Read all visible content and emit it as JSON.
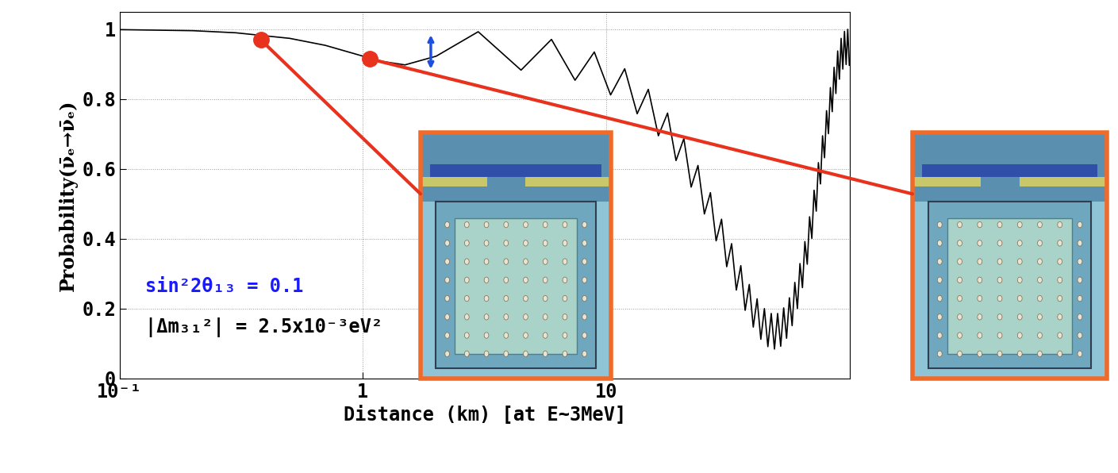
{
  "chart_data": {
    "type": "line",
    "x_label": "Distance (km) [at E~3MeV]",
    "y_label": "Probability(ν̄ₑ→ν̄ₑ)",
    "log": "x",
    "grid": true,
    "xlim": [
      0.1,
      100
    ],
    "ylim": [
      0,
      1.05
    ],
    "xticks": [
      {
        "value": 0.1,
        "label": "10⁻¹"
      },
      1,
      10
    ],
    "yticks": [
      0,
      0.2,
      0.4,
      0.6,
      0.8,
      1
    ],
    "color": "#000000",
    "x": [
      0.1,
      0.2,
      0.3,
      0.5,
      0.7,
      1.0,
      1.2,
      1.4875,
      2.0,
      2.975,
      4.4625,
      5.95,
      7.4375,
      8.925,
      10.4125,
      11.9,
      13.3875,
      14.875,
      16.3625,
      17.85,
      19.3375,
      20.825,
      22.3125,
      23.8,
      25.2875,
      26.775,
      28.2625,
      29.75,
      31.2375,
      32.725,
      34.2125,
      35.7,
      37.1875,
      38.675,
      40.1625,
      41.65,
      43.1375,
      44.625,
      46.1125,
      47.6,
      49.0875,
      50.575,
      52.0625,
      53.55,
      55.0375,
      56.525,
      58.0125,
      59.5,
      60.9875,
      62.475,
      63.9625,
      65.45,
      66.9375,
      68.425,
      69.9125,
      71.4,
      72.8875,
      74.375,
      75.8625,
      77.35,
      78.8375,
      80.325,
      81.8125,
      83.3,
      84.7875,
      86.275,
      87.7625,
      89.25,
      90.7375,
      92.225,
      93.7125,
      95.2,
      96.6875,
      98.175,
      99.66
    ],
    "values": [
      0.999,
      0.996,
      0.99,
      0.974,
      0.954,
      0.923,
      0.908,
      0.898,
      0.923,
      0.993,
      0.883,
      0.971,
      0.854,
      0.935,
      0.812,
      0.887,
      0.758,
      0.828,
      0.695,
      0.76,
      0.624,
      0.687,
      0.548,
      0.61,
      0.471,
      0.532,
      0.394,
      0.456,
      0.32,
      0.386,
      0.253,
      0.323,
      0.195,
      0.269,
      0.147,
      0.228,
      0.112,
      0.2,
      0.091,
      0.186,
      0.084,
      0.186,
      0.092,
      0.202,
      0.115,
      0.231,
      0.151,
      0.275,
      0.2,
      0.329,
      0.26,
      0.392,
      0.327,
      0.463,
      0.401,
      0.539,
      0.479,
      0.618,
      0.557,
      0.695,
      0.632,
      0.767,
      0.701,
      0.833,
      0.764,
      0.891,
      0.816,
      0.938,
      0.857,
      0.974,
      0.886,
      0.994,
      0.899,
      1.0,
      0.897
    ],
    "detectors": {
      "x": [
        0.38,
        1.07
      ],
      "values": [
        0.97,
        0.915
      ],
      "color": "#e8321e",
      "marker": "o"
    },
    "arrow": {
      "x": 1.9,
      "y": [
        0.88,
        0.99
      ],
      "color": "#1f4fe0"
    },
    "annotations": [
      {
        "text": "sin²2θ₁₃ = 0.1",
        "color": "#1a1aff"
      },
      {
        "text": "|Δm₃₁²| = 2.5x10⁻³eV²",
        "color": "#000000"
      }
    ]
  }
}
